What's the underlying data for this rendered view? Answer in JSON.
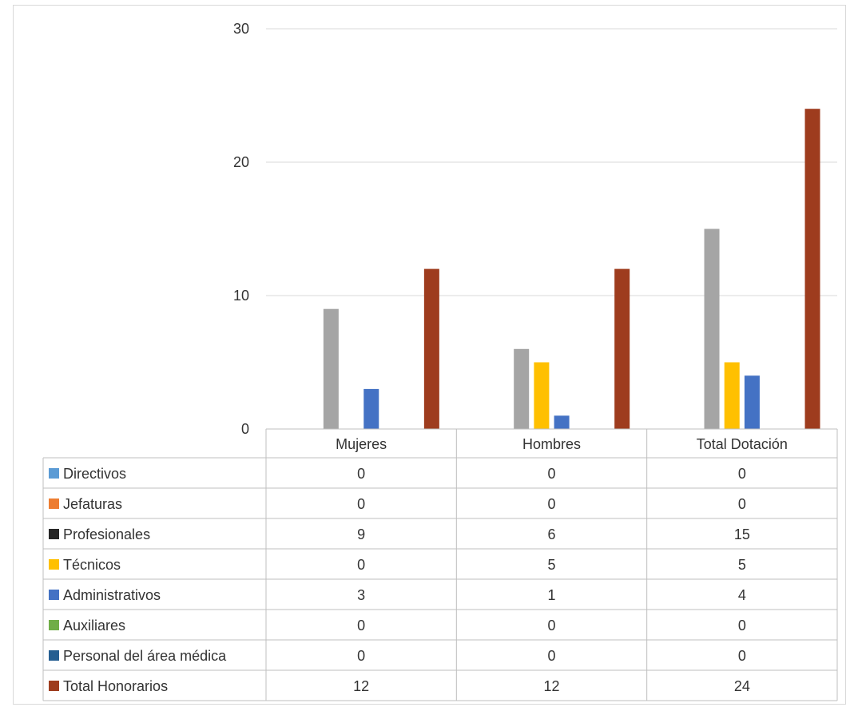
{
  "chart_data": {
    "type": "bar",
    "categories": [
      "Mujeres",
      "Hombres",
      "Total Dotación"
    ],
    "ylim": [
      0,
      30
    ],
    "yticks": [
      0,
      10,
      20,
      30
    ],
    "grid": true,
    "legend_placement": "data-table-left",
    "series": [
      {
        "name": "Directivos",
        "color": "#5b9bd5",
        "values": [
          0,
          0,
          0
        ]
      },
      {
        "name": "Jefaturas",
        "color": "#ed7d31",
        "values": [
          0,
          0,
          0
        ]
      },
      {
        "name": "Profesionales",
        "color": "#a5a5a5",
        "legend_color": "#262626",
        "values": [
          9,
          6,
          15
        ]
      },
      {
        "name": "Técnicos",
        "color": "#ffc000",
        "values": [
          0,
          5,
          5
        ]
      },
      {
        "name": "Administrativos",
        "color": "#4472c4",
        "values": [
          3,
          1,
          4
        ]
      },
      {
        "name": "Auxiliares",
        "color": "#70ad47",
        "values": [
          0,
          0,
          0
        ]
      },
      {
        "name": "Personal del área médica",
        "color": "#255e91",
        "values": [
          0,
          0,
          0
        ]
      },
      {
        "name": "Total Honorarios",
        "color": "#9e3c1e",
        "values": [
          12,
          12,
          24
        ]
      }
    ]
  }
}
